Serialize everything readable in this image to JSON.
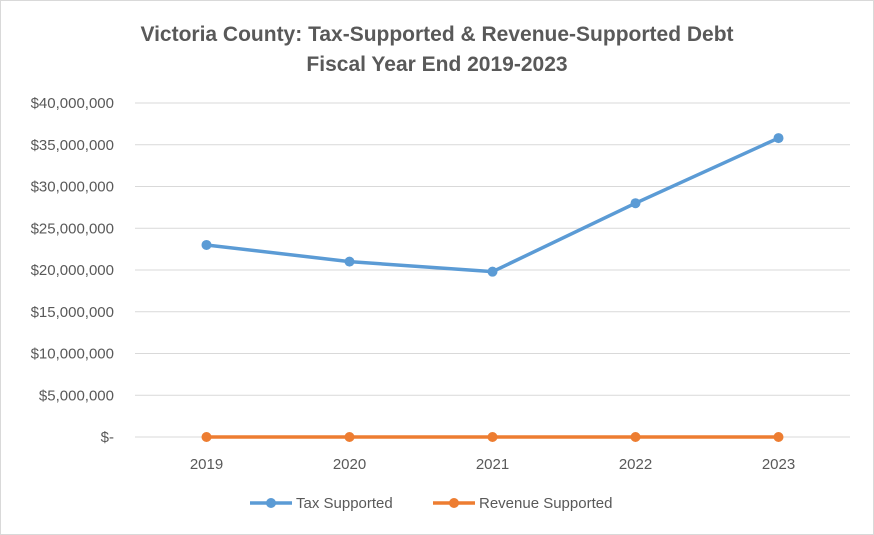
{
  "chart_data": {
    "type": "line",
    "title": "Victoria County: Tax-Supported & Revenue-Supported Debt",
    "subtitle": "Fiscal Year End 2019-2023",
    "xlabel": "",
    "ylabel": "",
    "categories": [
      "2019",
      "2020",
      "2021",
      "2022",
      "2023"
    ],
    "ylim": [
      0,
      40000000
    ],
    "yticks": [
      0,
      5000000,
      10000000,
      15000000,
      20000000,
      25000000,
      30000000,
      35000000,
      40000000
    ],
    "ytick_labels": [
      "$-",
      "$5,000,000",
      "$10,000,000",
      "$15,000,000",
      "$20,000,000",
      "$25,000,000",
      "$30,000,000",
      "$35,000,000",
      "$40,000,000"
    ],
    "grid": true,
    "legend_position": "bottom",
    "series": [
      {
        "name": "Tax Supported",
        "color": "#5b9bd5",
        "values": [
          23000000,
          21000000,
          19800000,
          28000000,
          35800000
        ]
      },
      {
        "name": "Revenue Supported",
        "color": "#ed7d31",
        "values": [
          0,
          0,
          0,
          0,
          0
        ]
      }
    ]
  }
}
